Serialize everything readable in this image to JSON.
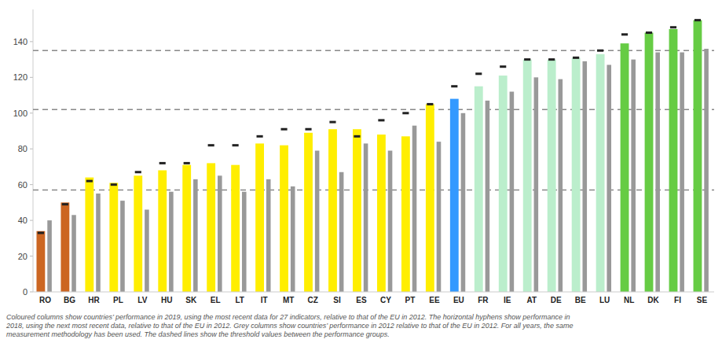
{
  "chart_data": {
    "type": "bar",
    "categories": [
      "RO",
      "BG",
      "HR",
      "PL",
      "LV",
      "HU",
      "SK",
      "EL",
      "LT",
      "IT",
      "MT",
      "CZ",
      "SI",
      "ES",
      "CY",
      "PT",
      "EE",
      "EU",
      "FR",
      "IE",
      "AT",
      "DE",
      "BE",
      "LU",
      "NL",
      "DK",
      "FI",
      "SE"
    ],
    "series": [
      {
        "type": "bar",
        "colors": [
          "#CC6622",
          "#CC6622",
          "#FFEE00",
          "#FFEE00",
          "#FFEE00",
          "#FFEE00",
          "#FFEE00",
          "#FFEE00",
          "#FFEE00",
          "#FFEE00",
          "#FFEE00",
          "#FFEE00",
          "#FFEE00",
          "#FFEE00",
          "#FFEE00",
          "#FFEE00",
          "#FFEE00",
          "#3399FF",
          "#BBEECC",
          "#BBEECC",
          "#BBEECC",
          "#BBEECC",
          "#BBEECC",
          "#BBEECC",
          "#66CC44",
          "#66CC44",
          "#66CC44",
          "#66CC44"
        ],
        "values": [
          34,
          50,
          64,
          61,
          65,
          68,
          71,
          72,
          71,
          83,
          82,
          89,
          91,
          91,
          88,
          87,
          105,
          108,
          115,
          121,
          130,
          130,
          131,
          133,
          139,
          145,
          147,
          152
        ]
      },
      {
        "type": "bar",
        "color": "#999999",
        "values": [
          40,
          43,
          55,
          51,
          46,
          56,
          63,
          65,
          56,
          63,
          59,
          79,
          67,
          83,
          79,
          93,
          84,
          100,
          107,
          112,
          120,
          119,
          129,
          127,
          130,
          134,
          134,
          136
        ]
      },
      {
        "type": "marker",
        "marker": "hyphen",
        "color": "#222222",
        "values": [
          33,
          49,
          62,
          60,
          67,
          72,
          72,
          82,
          82,
          87,
          91,
          91,
          95,
          87,
          96,
          100,
          105,
          115,
          122,
          126,
          130,
          130,
          131,
          135,
          144,
          145,
          148,
          152
        ]
      }
    ],
    "reference_lines": [
      57,
      102,
      135
    ],
    "ylim": [
      0,
      158
    ],
    "yticks": [
      0,
      20,
      40,
      60,
      80,
      100,
      120,
      140
    ],
    "grid": false,
    "footnote": [
      "Coloured columns show countries’ performance in 2019, using the most recent data for 27 indicators, relative to that of the EU in 2012. The horizontal hyphens show performance in",
      "2018, using the next most recent data, relative to that of the EU in 2012. Grey columns show countries’ performance in 2012 relative to that of the EU in 2012. For all years, the same",
      "measurement methodology has been used. The dashed lines show the threshold values between the performance groups."
    ]
  }
}
